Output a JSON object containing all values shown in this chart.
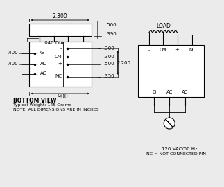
{
  "bg_color": "#ebebeb",
  "line_color": "#000000",
  "text_color": "#000000",
  "bottom_view": "BOTTOM VIEW",
  "weight": "Typicol Weight: 145 Grams",
  "note": "NOTE: ALL DIMENSIONS ARE IN INCHES",
  "voltage": "120 VAC/60 Hz",
  "nc_note": "NC = NOT CONNECTED PIN",
  "load": "LOAD",
  "dim_2300": "2.300",
  "dim_500": ".500",
  "dim_390": ".390",
  "dim_040": ".040 DIA.",
  "dim_400a": ".400",
  "dim_400b": ".400",
  "dim_300a": ".300",
  "dim_300b": ".300",
  "dim_500b": ".500",
  "dim_350": ".350",
  "dim_2200": "2.200",
  "dim_1900": "1.900",
  "pin_labels_left": [
    "G",
    "AC",
    "AC"
  ],
  "pin_labels_right": [
    "-",
    "CM",
    "+",
    "NC"
  ],
  "schematic_pins_top": [
    "-",
    "CM",
    "+",
    "NC"
  ],
  "schematic_pins_bottom": [
    "G",
    "AC",
    "AC"
  ]
}
